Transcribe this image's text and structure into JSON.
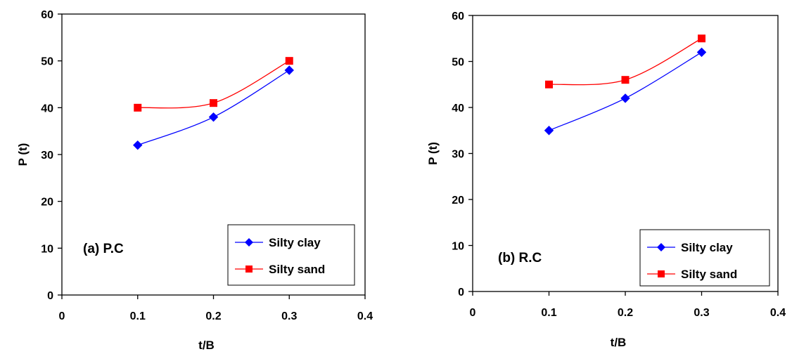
{
  "chart_data": [
    {
      "type": "line",
      "annotation": "(a) P.C",
      "xlabel": "t/B",
      "ylabel": "P (t)",
      "xlim": [
        0,
        0.4
      ],
      "ylim": [
        0,
        60
      ],
      "xticks": [
        0,
        0.1,
        0.2,
        0.3,
        0.4
      ],
      "yticks": [
        0,
        10,
        20,
        30,
        40,
        50,
        60
      ],
      "x": [
        0.1,
        0.2,
        0.3
      ],
      "grid": false,
      "legend_position": "bottom-right",
      "series": [
        {
          "name": "Silty clay",
          "values": [
            32,
            38,
            48
          ],
          "color": "#0000ff",
          "marker": "diamond"
        },
        {
          "name": "Silty sand",
          "values": [
            40,
            41,
            50
          ],
          "color": "#ff0000",
          "marker": "square"
        }
      ]
    },
    {
      "type": "line",
      "annotation": "(b) R.C",
      "xlabel": "t/B",
      "ylabel": "P (t)",
      "xlim": [
        0,
        0.4
      ],
      "ylim": [
        0,
        60
      ],
      "xticks": [
        0,
        0.1,
        0.2,
        0.3,
        0.4
      ],
      "yticks": [
        0,
        10,
        20,
        30,
        40,
        50,
        60
      ],
      "x": [
        0.1,
        0.2,
        0.3
      ],
      "grid": false,
      "legend_position": "bottom-right",
      "series": [
        {
          "name": "Silty clay",
          "values": [
            35,
            42,
            52
          ],
          "color": "#0000ff",
          "marker": "diamond"
        },
        {
          "name": "Silty sand",
          "values": [
            45,
            46,
            55
          ],
          "color": "#ff0000",
          "marker": "square"
        }
      ]
    }
  ]
}
